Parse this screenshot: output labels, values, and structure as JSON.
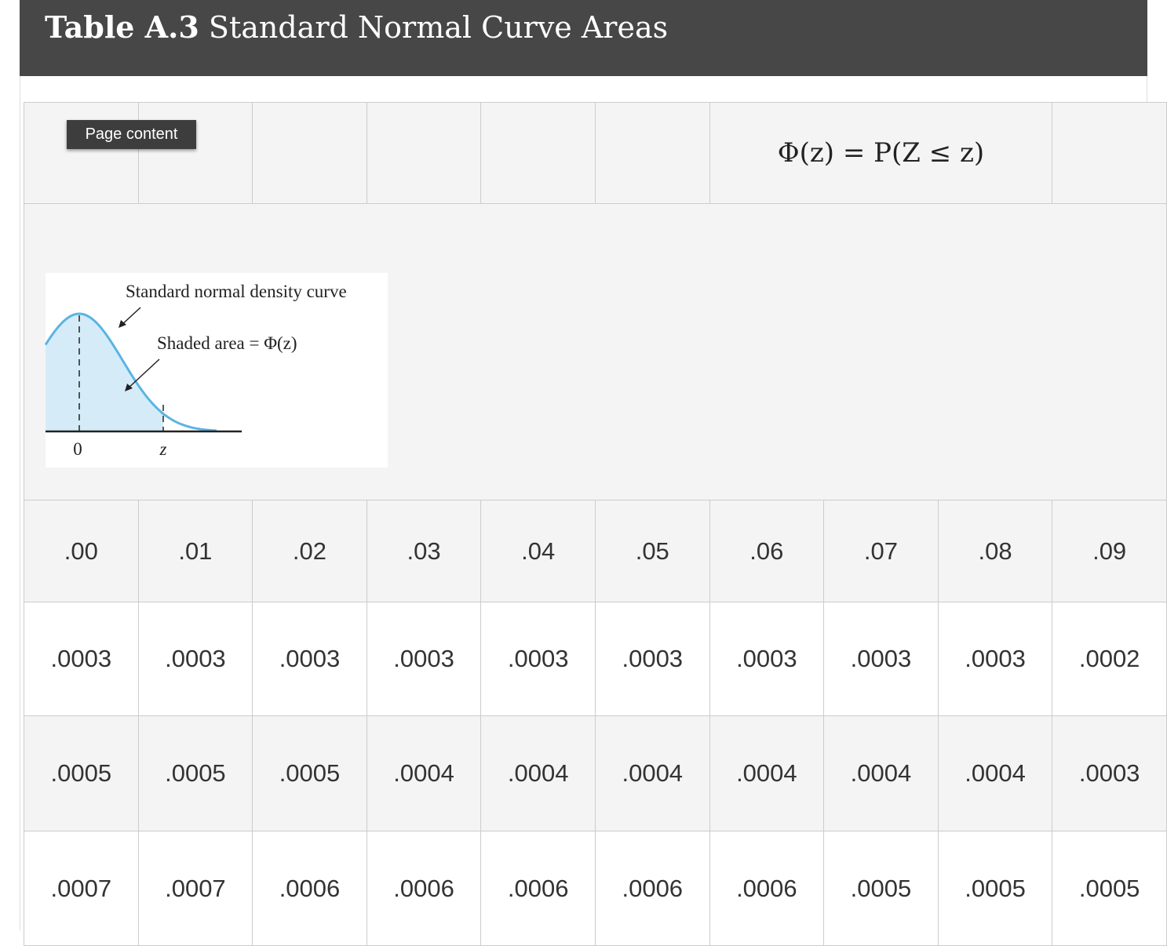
{
  "header": {
    "title_bold": "Table A.3",
    "title": "Standard Normal Curve Areas"
  },
  "tooltip": "Page content",
  "formula": "Φ(z) = P(Z ≤ z)",
  "figure": {
    "curve_label": "Standard normal density curve",
    "shaded_label": "Shaded area = Φ(z)",
    "axis_labels": [
      "0",
      "z"
    ]
  },
  "table": {
    "columns": [
      ".00",
      ".01",
      ".02",
      ".03",
      ".04",
      ".05",
      ".06",
      ".07",
      ".08",
      ".09"
    ],
    "rows": [
      [
        ".0003",
        ".0003",
        ".0003",
        ".0003",
        ".0003",
        ".0003",
        ".0003",
        ".0003",
        ".0003",
        ".0002"
      ],
      [
        ".0005",
        ".0005",
        ".0005",
        ".0004",
        ".0004",
        ".0004",
        ".0004",
        ".0004",
        ".0004",
        ".0003"
      ],
      [
        ".0007",
        ".0007",
        ".0006",
        ".0006",
        ".0006",
        ".0006",
        ".0006",
        ".0005",
        ".0005",
        ".0005"
      ]
    ]
  }
}
